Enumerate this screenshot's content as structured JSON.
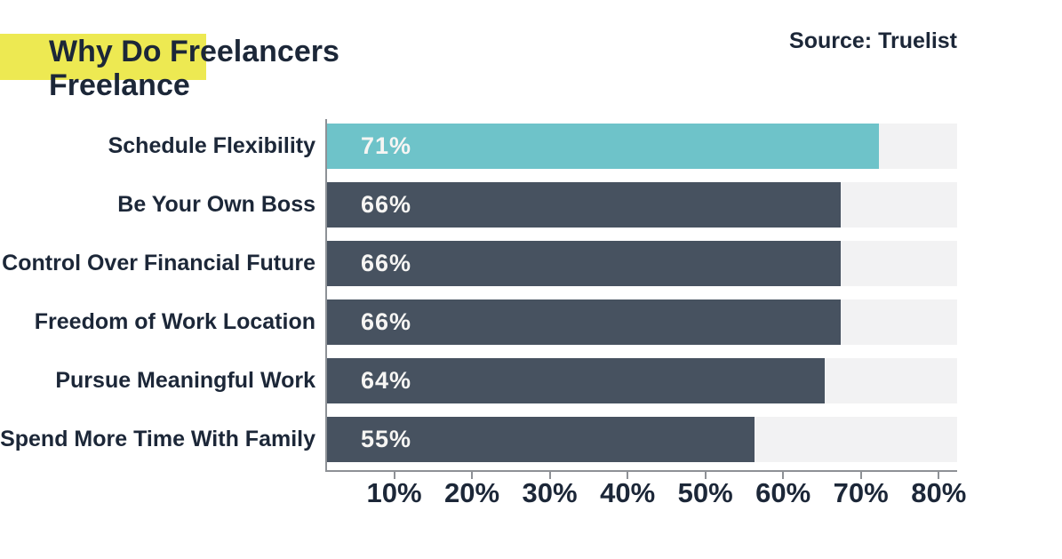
{
  "header": {
    "title": "Why Do Freelancers Freelance",
    "source_label": "Source: Truelist"
  },
  "chart_data": {
    "type": "bar",
    "orientation": "horizontal",
    "title": "Why Do Freelancers Freelance",
    "source": "Source: Truelist",
    "categories": [
      "Schedule Flexibility",
      "Be Your Own Boss",
      "Control Over Financial Future",
      "Freedom of Work Location",
      "Pursue Meaningful Work",
      "Spend More Time With Family"
    ],
    "values": [
      71,
      66,
      66,
      66,
      64,
      55
    ],
    "value_labels": [
      "71%",
      "66%",
      "66%",
      "66%",
      "64%",
      "55%"
    ],
    "x_ticks": [
      10,
      20,
      30,
      40,
      50,
      60,
      70,
      80
    ],
    "x_tick_labels": [
      "10%",
      "20%",
      "30%",
      "40%",
      "50%",
      "60%",
      "70%",
      "80%"
    ],
    "xlim": [
      0,
      81
    ],
    "xlabel": "",
    "ylabel": "",
    "grid": false,
    "legend": false,
    "bar_colors": [
      "#6ec3c9",
      "#475260",
      "#475260",
      "#475260",
      "#475260",
      "#475260"
    ],
    "track_color": "#f2f2f3"
  },
  "colors": {
    "accent_teal": "#6ec3c9",
    "slate": "#475260",
    "yellow_highlight": "#ede952",
    "text_navy": "#1c2738",
    "axis_gray": "#8e9196",
    "track_gray": "#f2f2f3"
  }
}
